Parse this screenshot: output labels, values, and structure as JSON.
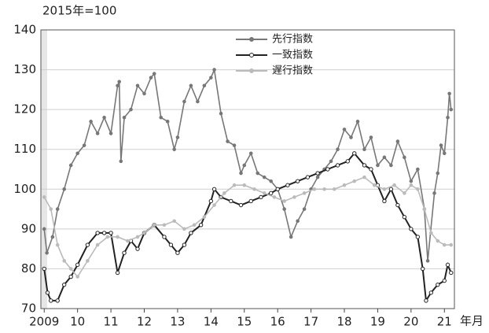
{
  "chart_data": {
    "type": "line",
    "title": "2015年=100",
    "xlabel": "年月",
    "xlim": [
      2008.9,
      2021.3
    ],
    "xticks": [
      {
        "value": 2009,
        "label": "2009"
      },
      {
        "value": 2010,
        "label": "10"
      },
      {
        "value": 2011,
        "label": "11"
      },
      {
        "value": 2012,
        "label": "12"
      },
      {
        "value": 2013,
        "label": "13"
      },
      {
        "value": 2014,
        "label": "14"
      },
      {
        "value": 2015,
        "label": "15"
      },
      {
        "value": 2016,
        "label": "16"
      },
      {
        "value": 2017,
        "label": "17"
      },
      {
        "value": 2018,
        "label": "18"
      },
      {
        "value": 2019,
        "label": "19"
      },
      {
        "value": 2020,
        "label": "20"
      },
      {
        "value": 2021,
        "label": "21"
      }
    ],
    "ylim": [
      70,
      140
    ],
    "yticks": [
      70,
      80,
      90,
      100,
      110,
      120,
      130,
      140
    ],
    "grid": true,
    "legend": "top",
    "series": [
      {
        "name": "先行指数",
        "color": "#777777",
        "x": [
          2009.0,
          2009.08,
          2009.25,
          2009.4,
          2009.6,
          2009.8,
          2010.0,
          2010.2,
          2010.4,
          2010.6,
          2010.8,
          2011.0,
          2011.2,
          2011.25,
          2011.3,
          2011.4,
          2011.6,
          2011.8,
          2012.0,
          2012.2,
          2012.3,
          2012.5,
          2012.7,
          2012.9,
          2013.0,
          2013.2,
          2013.4,
          2013.6,
          2013.8,
          2014.0,
          2014.1,
          2014.3,
          2014.5,
          2014.7,
          2014.9,
          2015.0,
          2015.2,
          2015.4,
          2015.6,
          2015.8,
          2016.0,
          2016.2,
          2016.4,
          2016.6,
          2016.8,
          2017.0,
          2017.2,
          2017.4,
          2017.6,
          2017.8,
          2018.0,
          2018.2,
          2018.4,
          2018.6,
          2018.8,
          2019.0,
          2019.2,
          2019.4,
          2019.6,
          2019.8,
          2020.0,
          2020.2,
          2020.4,
          2020.5,
          2020.7,
          2020.8,
          2020.9,
          2021.0,
          2021.1,
          2021.15,
          2021.2
        ],
        "values": [
          90,
          84,
          88,
          95,
          100,
          106,
          109,
          111,
          117,
          114,
          118,
          114,
          126,
          127,
          107,
          118,
          120,
          126,
          124,
          128,
          129,
          118,
          117,
          110,
          113,
          122,
          126,
          122,
          126,
          128,
          130,
          119,
          112,
          111,
          104,
          106,
          109,
          104,
          103,
          102,
          100,
          95,
          88,
          92,
          95,
          100,
          103,
          105,
          107,
          110,
          115,
          113,
          117,
          110,
          113,
          106,
          108,
          106,
          112,
          108,
          102,
          105,
          95,
          82,
          99,
          104,
          111,
          109,
          118,
          124,
          120
        ]
      },
      {
        "name": "一致指数",
        "color": "#222222",
        "x": [
          2009.0,
          2009.1,
          2009.2,
          2009.4,
          2009.6,
          2009.8,
          2010.0,
          2010.3,
          2010.6,
          2010.8,
          2011.0,
          2011.2,
          2011.4,
          2011.6,
          2011.8,
          2012.0,
          2012.3,
          2012.6,
          2012.8,
          2013.0,
          2013.2,
          2013.4,
          2013.7,
          2014.0,
          2014.1,
          2014.3,
          2014.6,
          2014.9,
          2015.2,
          2015.5,
          2015.8,
          2016.0,
          2016.3,
          2016.6,
          2016.9,
          2017.2,
          2017.5,
          2017.8,
          2018.1,
          2018.3,
          2018.6,
          2018.8,
          2019.0,
          2019.2,
          2019.4,
          2019.6,
          2019.8,
          2020.0,
          2020.2,
          2020.35,
          2020.45,
          2020.6,
          2020.8,
          2021.0,
          2021.1,
          2021.2
        ],
        "values": [
          80,
          74,
          72,
          72,
          76,
          78,
          81,
          86,
          89,
          89,
          89,
          79,
          84,
          87,
          85,
          89,
          91,
          88,
          86,
          84,
          86,
          89,
          91,
          97,
          100,
          98,
          97,
          96,
          97,
          98,
          99,
          100,
          101,
          102,
          103,
          104,
          105,
          106,
          107,
          109,
          106,
          105,
          101,
          97,
          100,
          96,
          93,
          90,
          88,
          80,
          72,
          74,
          76,
          77,
          81,
          79
        ]
      },
      {
        "name": "遅行指数",
        "color": "#bbbbbb",
        "x": [
          2009.0,
          2009.2,
          2009.4,
          2009.6,
          2009.8,
          2010.0,
          2010.3,
          2010.6,
          2010.9,
          2011.2,
          2011.5,
          2011.8,
          2012.0,
          2012.3,
          2012.6,
          2012.9,
          2013.2,
          2013.5,
          2013.8,
          2014.1,
          2014.4,
          2014.7,
          2015.0,
          2015.3,
          2015.6,
          2015.9,
          2016.2,
          2016.5,
          2016.8,
          2017.1,
          2017.4,
          2017.7,
          2018.0,
          2018.3,
          2018.6,
          2018.9,
          2019.2,
          2019.5,
          2019.8,
          2020.0,
          2020.2,
          2020.4,
          2020.6,
          2020.8,
          2021.0,
          2021.2
        ],
        "values": [
          98,
          95,
          86,
          82,
          80,
          78,
          82,
          86,
          88,
          88,
          87,
          88,
          89,
          91,
          91,
          92,
          90,
          91,
          93,
          96,
          99,
          101,
          101,
          100,
          99,
          98,
          97,
          98,
          99,
          100,
          100,
          100,
          101,
          102,
          103,
          101,
          100,
          101,
          99,
          101,
          100,
          95,
          89,
          87,
          86,
          86
        ]
      }
    ]
  }
}
